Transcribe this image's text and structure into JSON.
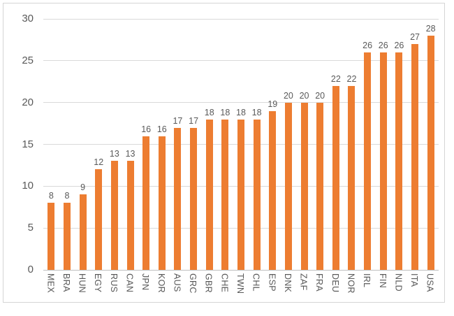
{
  "chart_data": {
    "type": "bar",
    "title": "",
    "xlabel": "",
    "ylabel": "",
    "categories": [
      "MEX",
      "BRA",
      "HUN",
      "EGY",
      "RUS",
      "CAN",
      "JPN",
      "KOR",
      "AUS",
      "GRC",
      "GBR",
      "CHE",
      "TWN",
      "CHL",
      "ESP",
      "DNK",
      "ZAF",
      "FRA",
      "DEU",
      "NOR",
      "IRL",
      "FIN",
      "NLD",
      "ITA",
      "USA"
    ],
    "values": [
      8,
      8,
      9,
      12,
      13,
      13,
      16,
      16,
      17,
      17,
      18,
      18,
      18,
      18,
      19,
      20,
      20,
      20,
      22,
      22,
      26,
      26,
      26,
      27,
      28
    ],
    "data_labels_shown": true,
    "ylim": [
      0,
      30
    ],
    "yticks": [
      0,
      5,
      10,
      15,
      20,
      25,
      30
    ],
    "grid": true,
    "legend": "none",
    "x_label_orientation": "vertical-read-top-to-bottom",
    "bar_color": "#ed7d31",
    "gridline_color": "#d9d9d9",
    "axis_line_color": "#bfbfbf",
    "label_color": "#595959",
    "frame_border_color": "#d5d5d5",
    "background_color": "#ffffff"
  }
}
